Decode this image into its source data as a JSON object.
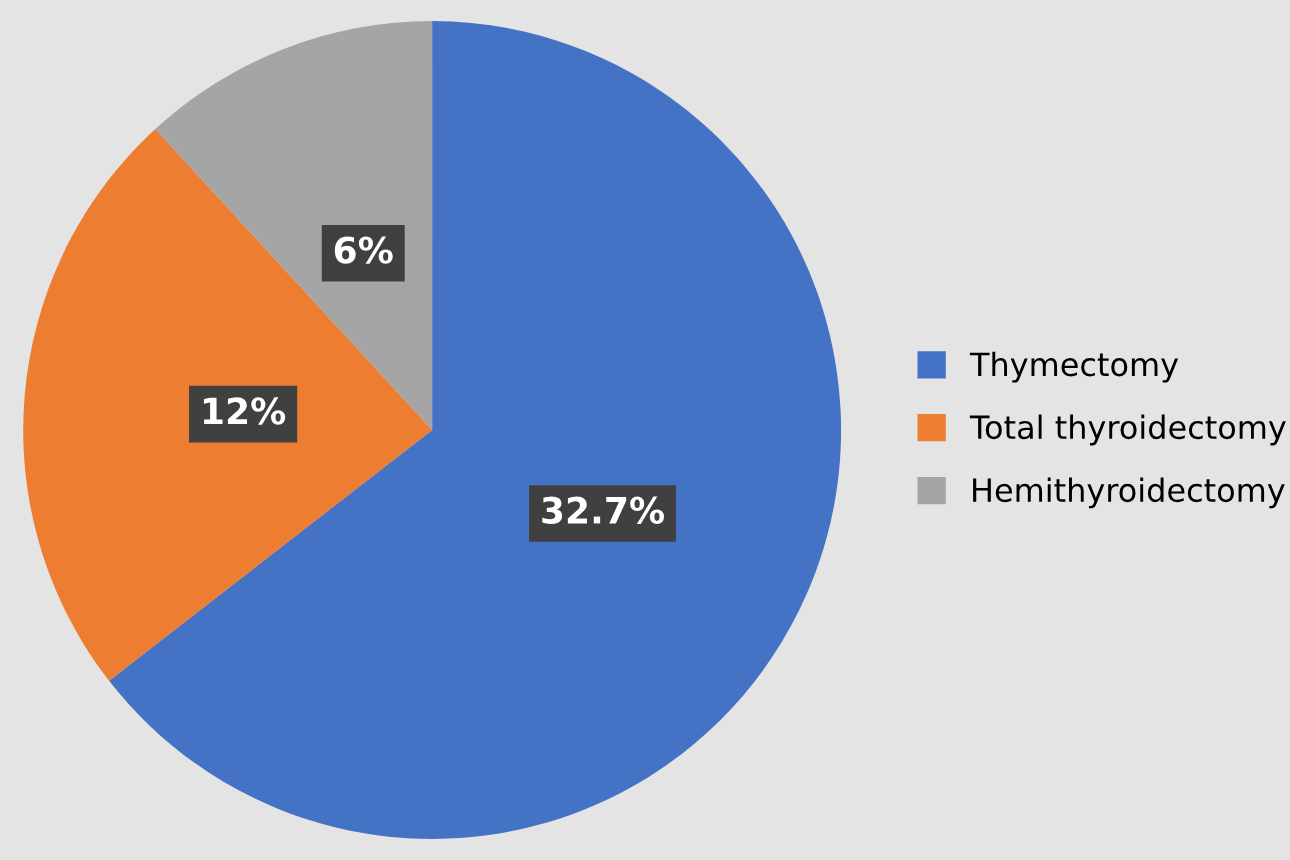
{
  "chart_data": {
    "type": "pie",
    "categories": [
      "Thymectomy",
      "Total thyroidectomy",
      "Hemithyroidectomy"
    ],
    "values": [
      32.7,
      12,
      6
    ],
    "colors": [
      "#4472c4",
      "#ed7d31",
      "#a5a5a5"
    ],
    "value_labels": [
      "32.7%",
      "12%",
      "6%"
    ],
    "legend": "right"
  }
}
